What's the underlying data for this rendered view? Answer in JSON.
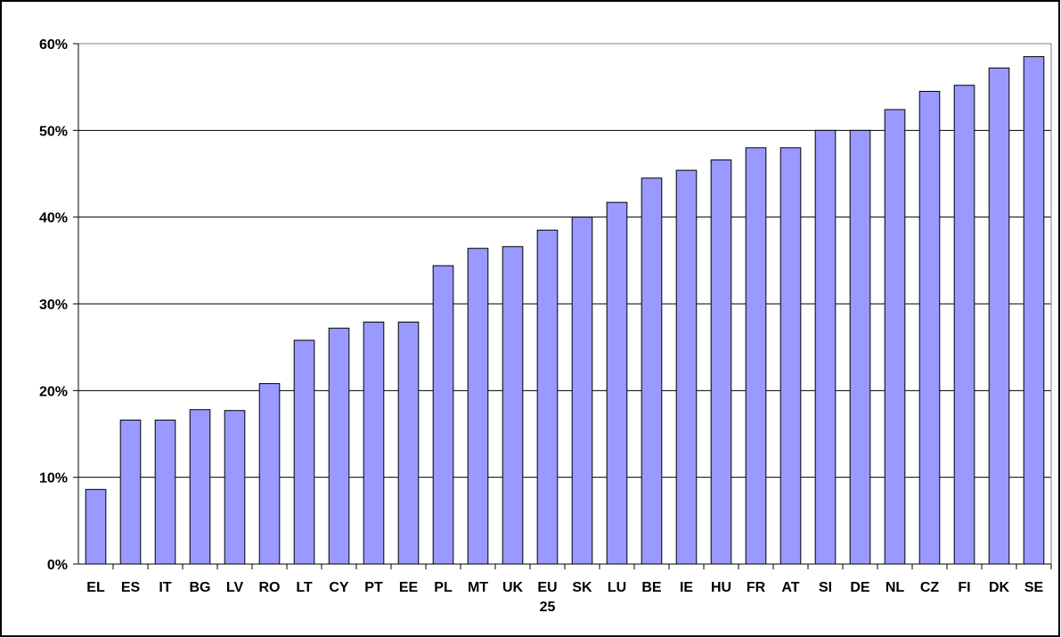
{
  "chart_data": {
    "type": "bar",
    "categories": [
      "EL",
      "ES",
      "IT",
      "BG",
      "LV",
      "RO",
      "LT",
      "CY",
      "PT",
      "EE",
      "PL",
      "MT",
      "UK",
      "EU 25",
      "SK",
      "LU",
      "BE",
      "IE",
      "HU",
      "FR",
      "AT",
      "SI",
      "DE",
      "NL",
      "CZ",
      "FI",
      "DK",
      "SE"
    ],
    "values": [
      8.6,
      16.6,
      16.6,
      17.8,
      17.7,
      20.8,
      25.8,
      27.2,
      27.9,
      27.9,
      34.4,
      36.4,
      36.6,
      38.5,
      40,
      41.7,
      44.5,
      45.4,
      46.6,
      48,
      48,
      50,
      50,
      52.4,
      54.5,
      55.2,
      57.2,
      58.5
    ],
    "color": "#9999ff",
    "ylim": [
      0,
      60
    ],
    "yticks": [
      {
        "value": 0,
        "label": "0%"
      },
      {
        "value": 10,
        "label": "10%"
      },
      {
        "value": 20,
        "label": "20%"
      },
      {
        "value": 30,
        "label": "30%"
      },
      {
        "value": 40,
        "label": "40%"
      },
      {
        "value": 50,
        "label": "50%"
      },
      {
        "value": 60,
        "label": "60%"
      }
    ],
    "grid": true
  }
}
